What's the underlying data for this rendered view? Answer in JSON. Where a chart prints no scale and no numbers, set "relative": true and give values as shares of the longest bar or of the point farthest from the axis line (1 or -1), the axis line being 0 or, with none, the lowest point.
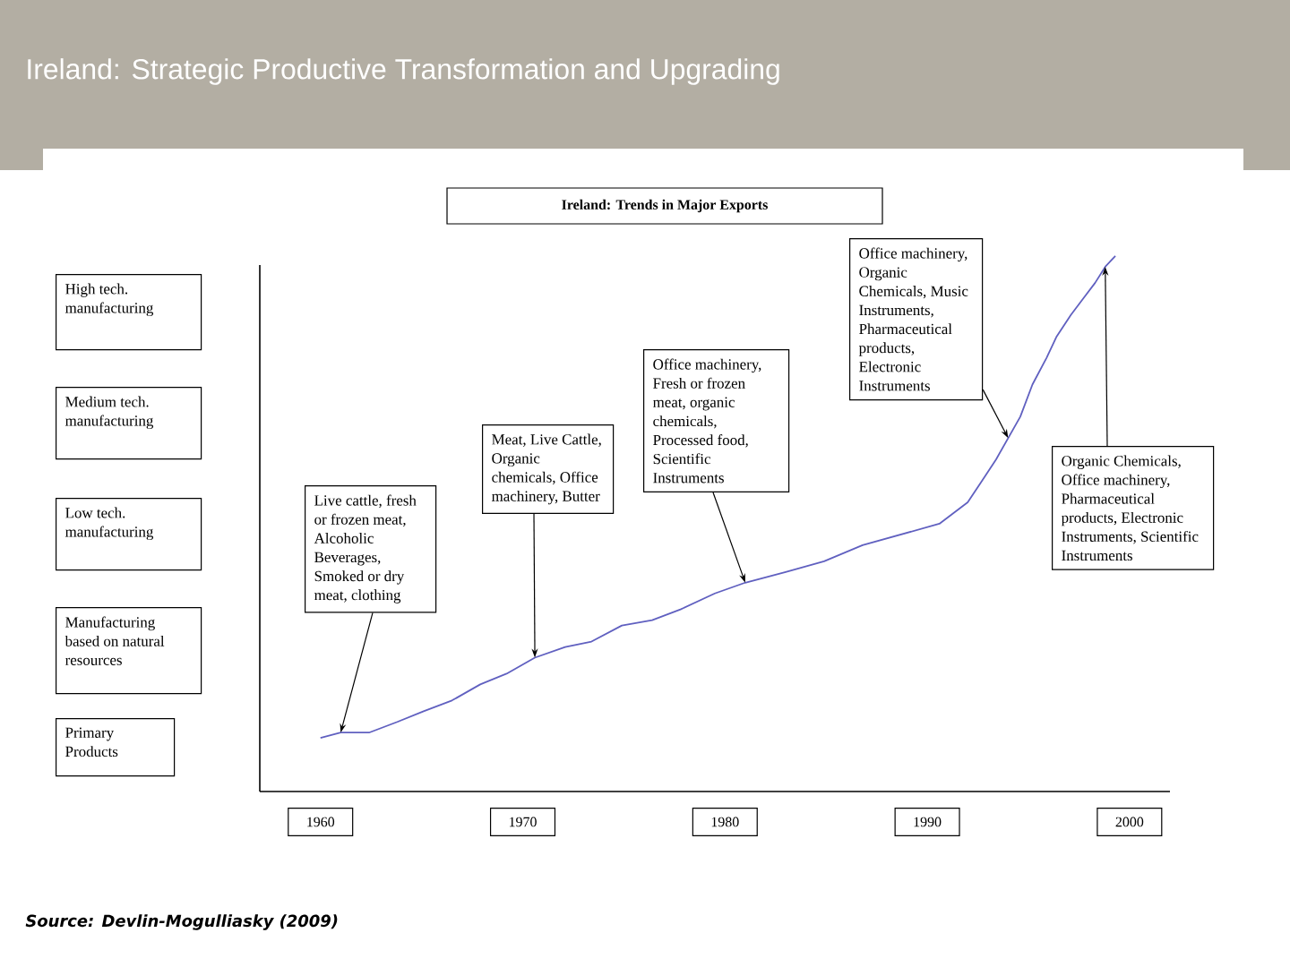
{
  "chart_data": {
    "type": "line",
    "title": "Ireland: Strategic Productive Transformation and Upgrading",
    "subtitle": "Ireland: Trends in Major Exports",
    "relative": true,
    "color": "#6060c0",
    "x": [
      1960,
      1961,
      1962.4,
      1963.8,
      1965.1,
      1966.5,
      1967.9,
      1969.2,
      1970.6,
      1972.1,
      1973.4,
      1974.9,
      1976.4,
      1977.8,
      1979.5,
      1981,
      1983,
      1984.9,
      1986.8,
      1988.7,
      1990.6,
      1992,
      1992.7,
      1993.4,
      1994,
      1994.6,
      1995.2,
      1995.9,
      1996.4,
      1997.1,
      1997.7,
      1998.3,
      1998.8,
      1999.3
    ],
    "values": [
      0.1,
      0.11,
      0.11,
      0.13,
      0.15,
      0.17,
      0.2,
      0.22,
      0.25,
      0.27,
      0.28,
      0.31,
      0.32,
      0.34,
      0.37,
      0.39,
      0.41,
      0.43,
      0.46,
      0.48,
      0.5,
      0.54,
      0.58,
      0.62,
      0.66,
      0.7,
      0.76,
      0.81,
      0.85,
      0.89,
      0.92,
      0.95,
      0.98,
      1
    ],
    "xlim": [
      1957,
      2002
    ],
    "xticks": [
      1960,
      1970,
      1980,
      1990,
      2000
    ],
    "annotations": [
      "High tech. manufacturing",
      "Medium tech. manufacturing",
      "Low tech. manufacturing",
      "Manufacturing based on natural resources",
      "Primary Products",
      {
        "text": "Live cattle, fresh or frozen meat, Alcoholic Beverages, Smoked or dry meat, clothing",
        "x": 1961,
        "y": 0.11
      },
      {
        "text": "Meat, Live Cattle, Organic chemicals, Office machinery, Butter",
        "x": 1970.6,
        "y": 0.25
      },
      {
        "text": "Office machinery, Fresh or frozen meat, organic chemicals, Processed food, Scientific Instruments",
        "x": 1981,
        "y": 0.39
      },
      {
        "text": "Office machinery, Organic Chemicals, Music Instruments, Pharmaceutical products, Electronic Instruments",
        "x": 1994,
        "y": 0.66
      },
      {
        "text": "Organic Chemicals, Office machinery, Pharmaceutical products, Electronic Instruments, Scientific Instruments",
        "x": 1998.8,
        "y": 0.98
      },
      "Source: Devlin-Mogulliasky (2009)"
    ]
  }
}
